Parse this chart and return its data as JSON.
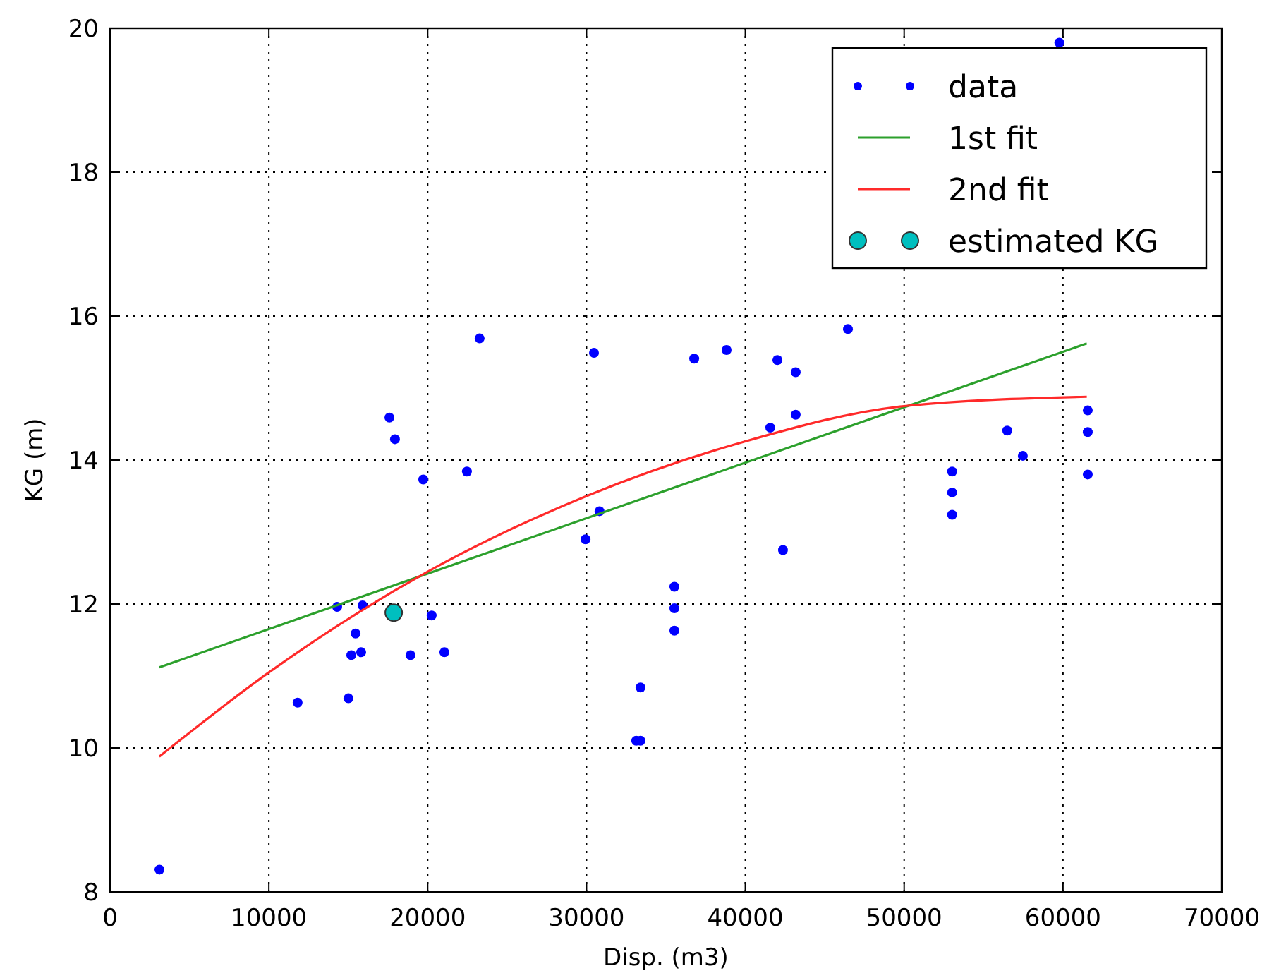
{
  "chart_data": {
    "type": "scatter",
    "xlabel": "Disp. (m3)",
    "ylabel": "KG (m)",
    "xlim": [
      0,
      70000
    ],
    "ylim": [
      8,
      20
    ],
    "xticks": [
      0,
      10000,
      20000,
      30000,
      40000,
      50000,
      60000,
      70000
    ],
    "yticks": [
      8,
      10,
      12,
      14,
      16,
      18,
      20
    ],
    "grid": true,
    "legend": "top right",
    "series": [
      {
        "name": "data",
        "marker": "circle",
        "color": "#0000ff",
        "x": [
          3110,
          11810,
          15010,
          15190,
          15810,
          15460,
          14300,
          15900,
          18920,
          20250,
          21050,
          17590,
          17940,
          19720,
          22470,
          23270,
          30470,
          29940,
          30820,
          35530,
          35530,
          35530,
          33400,
          33130,
          33400,
          36780,
          38820,
          42020,
          43170,
          43170,
          41570,
          42370,
          46460,
          59770,
          53020,
          53020,
          53020,
          56490,
          57470,
          61560,
          61560,
          61560
        ],
        "values": [
          8.31,
          10.63,
          10.69,
          11.29,
          11.33,
          11.59,
          11.96,
          11.98,
          11.29,
          11.84,
          11.33,
          14.59,
          14.29,
          13.73,
          13.84,
          15.69,
          15.49,
          12.9,
          13.29,
          12.24,
          11.94,
          11.63,
          10.84,
          10.1,
          10.1,
          15.41,
          15.53,
          15.39,
          15.22,
          14.63,
          14.45,
          12.75,
          15.82,
          19.8,
          13.84,
          13.55,
          13.24,
          14.41,
          14.06,
          14.69,
          14.39,
          13.8
        ]
      },
      {
        "name": "1st fit",
        "type": "line",
        "marker": "none",
        "color": "#2ca02c",
        "x": [
          3100,
          61500
        ],
        "values": [
          11.12,
          15.62
        ]
      },
      {
        "name": "2nd fit",
        "type": "line",
        "marker": "none",
        "color": "#ff2a2a",
        "x": [
          3100,
          10000,
          20000,
          30000,
          40000,
          50000,
          61500
        ],
        "values": [
          9.88,
          11.05,
          12.45,
          13.5,
          14.26,
          14.75,
          14.88
        ]
      },
      {
        "name": "estimated KG",
        "type": "scatter",
        "marker": "circle",
        "color": "#00bfbf",
        "x": [
          17860
        ],
        "values": [
          11.88
        ]
      }
    ]
  }
}
